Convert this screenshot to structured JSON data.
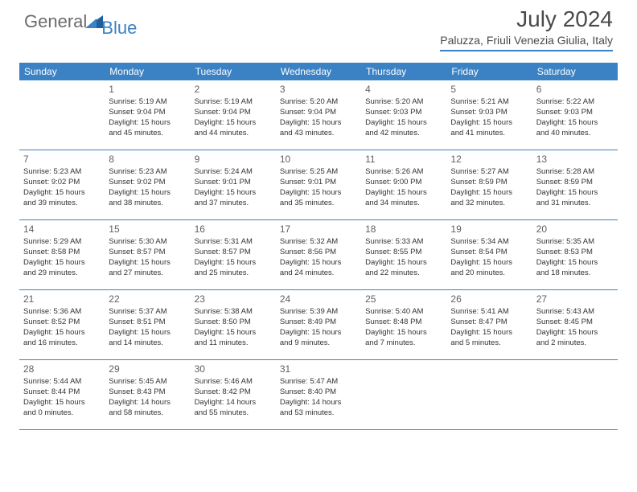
{
  "brand": {
    "part1": "General",
    "part2": "Blue"
  },
  "title": "July 2024",
  "location": "Paluzza, Friuli Venezia Giulia, Italy",
  "colors": {
    "accent": "#3b82c4",
    "text": "#333333",
    "heading": "#4a4a4a",
    "white": "#ffffff"
  },
  "weekdays": [
    "Sunday",
    "Monday",
    "Tuesday",
    "Wednesday",
    "Thursday",
    "Friday",
    "Saturday"
  ],
  "weeks": [
    [
      {
        "n": "",
        "sr": "",
        "ss": "",
        "d1": "",
        "d2": ""
      },
      {
        "n": "1",
        "sr": "Sunrise: 5:19 AM",
        "ss": "Sunset: 9:04 PM",
        "d1": "Daylight: 15 hours",
        "d2": "and 45 minutes."
      },
      {
        "n": "2",
        "sr": "Sunrise: 5:19 AM",
        "ss": "Sunset: 9:04 PM",
        "d1": "Daylight: 15 hours",
        "d2": "and 44 minutes."
      },
      {
        "n": "3",
        "sr": "Sunrise: 5:20 AM",
        "ss": "Sunset: 9:04 PM",
        "d1": "Daylight: 15 hours",
        "d2": "and 43 minutes."
      },
      {
        "n": "4",
        "sr": "Sunrise: 5:20 AM",
        "ss": "Sunset: 9:03 PM",
        "d1": "Daylight: 15 hours",
        "d2": "and 42 minutes."
      },
      {
        "n": "5",
        "sr": "Sunrise: 5:21 AM",
        "ss": "Sunset: 9:03 PM",
        "d1": "Daylight: 15 hours",
        "d2": "and 41 minutes."
      },
      {
        "n": "6",
        "sr": "Sunrise: 5:22 AM",
        "ss": "Sunset: 9:03 PM",
        "d1": "Daylight: 15 hours",
        "d2": "and 40 minutes."
      }
    ],
    [
      {
        "n": "7",
        "sr": "Sunrise: 5:23 AM",
        "ss": "Sunset: 9:02 PM",
        "d1": "Daylight: 15 hours",
        "d2": "and 39 minutes."
      },
      {
        "n": "8",
        "sr": "Sunrise: 5:23 AM",
        "ss": "Sunset: 9:02 PM",
        "d1": "Daylight: 15 hours",
        "d2": "and 38 minutes."
      },
      {
        "n": "9",
        "sr": "Sunrise: 5:24 AM",
        "ss": "Sunset: 9:01 PM",
        "d1": "Daylight: 15 hours",
        "d2": "and 37 minutes."
      },
      {
        "n": "10",
        "sr": "Sunrise: 5:25 AM",
        "ss": "Sunset: 9:01 PM",
        "d1": "Daylight: 15 hours",
        "d2": "and 35 minutes."
      },
      {
        "n": "11",
        "sr": "Sunrise: 5:26 AM",
        "ss": "Sunset: 9:00 PM",
        "d1": "Daylight: 15 hours",
        "d2": "and 34 minutes."
      },
      {
        "n": "12",
        "sr": "Sunrise: 5:27 AM",
        "ss": "Sunset: 8:59 PM",
        "d1": "Daylight: 15 hours",
        "d2": "and 32 minutes."
      },
      {
        "n": "13",
        "sr": "Sunrise: 5:28 AM",
        "ss": "Sunset: 8:59 PM",
        "d1": "Daylight: 15 hours",
        "d2": "and 31 minutes."
      }
    ],
    [
      {
        "n": "14",
        "sr": "Sunrise: 5:29 AM",
        "ss": "Sunset: 8:58 PM",
        "d1": "Daylight: 15 hours",
        "d2": "and 29 minutes."
      },
      {
        "n": "15",
        "sr": "Sunrise: 5:30 AM",
        "ss": "Sunset: 8:57 PM",
        "d1": "Daylight: 15 hours",
        "d2": "and 27 minutes."
      },
      {
        "n": "16",
        "sr": "Sunrise: 5:31 AM",
        "ss": "Sunset: 8:57 PM",
        "d1": "Daylight: 15 hours",
        "d2": "and 25 minutes."
      },
      {
        "n": "17",
        "sr": "Sunrise: 5:32 AM",
        "ss": "Sunset: 8:56 PM",
        "d1": "Daylight: 15 hours",
        "d2": "and 24 minutes."
      },
      {
        "n": "18",
        "sr": "Sunrise: 5:33 AM",
        "ss": "Sunset: 8:55 PM",
        "d1": "Daylight: 15 hours",
        "d2": "and 22 minutes."
      },
      {
        "n": "19",
        "sr": "Sunrise: 5:34 AM",
        "ss": "Sunset: 8:54 PM",
        "d1": "Daylight: 15 hours",
        "d2": "and 20 minutes."
      },
      {
        "n": "20",
        "sr": "Sunrise: 5:35 AM",
        "ss": "Sunset: 8:53 PM",
        "d1": "Daylight: 15 hours",
        "d2": "and 18 minutes."
      }
    ],
    [
      {
        "n": "21",
        "sr": "Sunrise: 5:36 AM",
        "ss": "Sunset: 8:52 PM",
        "d1": "Daylight: 15 hours",
        "d2": "and 16 minutes."
      },
      {
        "n": "22",
        "sr": "Sunrise: 5:37 AM",
        "ss": "Sunset: 8:51 PM",
        "d1": "Daylight: 15 hours",
        "d2": "and 14 minutes."
      },
      {
        "n": "23",
        "sr": "Sunrise: 5:38 AM",
        "ss": "Sunset: 8:50 PM",
        "d1": "Daylight: 15 hours",
        "d2": "and 11 minutes."
      },
      {
        "n": "24",
        "sr": "Sunrise: 5:39 AM",
        "ss": "Sunset: 8:49 PM",
        "d1": "Daylight: 15 hours",
        "d2": "and 9 minutes."
      },
      {
        "n": "25",
        "sr": "Sunrise: 5:40 AM",
        "ss": "Sunset: 8:48 PM",
        "d1": "Daylight: 15 hours",
        "d2": "and 7 minutes."
      },
      {
        "n": "26",
        "sr": "Sunrise: 5:41 AM",
        "ss": "Sunset: 8:47 PM",
        "d1": "Daylight: 15 hours",
        "d2": "and 5 minutes."
      },
      {
        "n": "27",
        "sr": "Sunrise: 5:43 AM",
        "ss": "Sunset: 8:45 PM",
        "d1": "Daylight: 15 hours",
        "d2": "and 2 minutes."
      }
    ],
    [
      {
        "n": "28",
        "sr": "Sunrise: 5:44 AM",
        "ss": "Sunset: 8:44 PM",
        "d1": "Daylight: 15 hours",
        "d2": "and 0 minutes."
      },
      {
        "n": "29",
        "sr": "Sunrise: 5:45 AM",
        "ss": "Sunset: 8:43 PM",
        "d1": "Daylight: 14 hours",
        "d2": "and 58 minutes."
      },
      {
        "n": "30",
        "sr": "Sunrise: 5:46 AM",
        "ss": "Sunset: 8:42 PM",
        "d1": "Daylight: 14 hours",
        "d2": "and 55 minutes."
      },
      {
        "n": "31",
        "sr": "Sunrise: 5:47 AM",
        "ss": "Sunset: 8:40 PM",
        "d1": "Daylight: 14 hours",
        "d2": "and 53 minutes."
      },
      {
        "n": "",
        "sr": "",
        "ss": "",
        "d1": "",
        "d2": ""
      },
      {
        "n": "",
        "sr": "",
        "ss": "",
        "d1": "",
        "d2": ""
      },
      {
        "n": "",
        "sr": "",
        "ss": "",
        "d1": "",
        "d2": ""
      }
    ]
  ]
}
